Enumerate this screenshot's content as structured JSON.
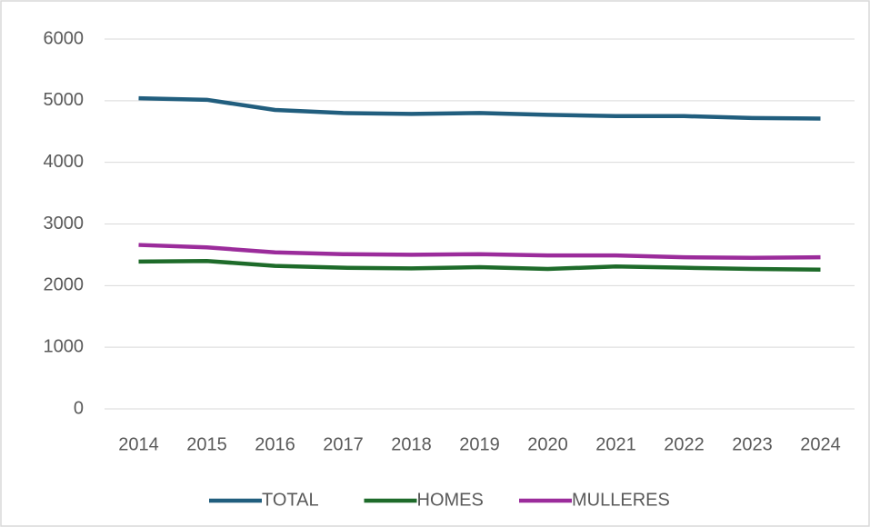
{
  "chart_data": {
    "type": "line",
    "categories": [
      "2014",
      "2015",
      "2016",
      "2017",
      "2018",
      "2019",
      "2020",
      "2021",
      "2022",
      "2023",
      "2024"
    ],
    "series": [
      {
        "name": "TOTAL",
        "color": "#215e7e",
        "values": [
          5040,
          5015,
          4850,
          4800,
          4785,
          4800,
          4770,
          4750,
          4750,
          4720,
          4710
        ]
      },
      {
        "name": "HOMES",
        "color": "#1e6b2a",
        "values": [
          2390,
          2400,
          2320,
          2290,
          2280,
          2300,
          2270,
          2310,
          2290,
          2270,
          2260
        ]
      },
      {
        "name": "MULLERES",
        "color": "#9b2c9b",
        "values": [
          2660,
          2620,
          2540,
          2510,
          2500,
          2510,
          2490,
          2490,
          2460,
          2450,
          2460
        ]
      }
    ],
    "ylim": [
      0,
      6000
    ],
    "yticks": [
      0,
      1000,
      2000,
      3000,
      4000,
      5000,
      6000
    ],
    "grid": true,
    "legend": "bottom"
  }
}
